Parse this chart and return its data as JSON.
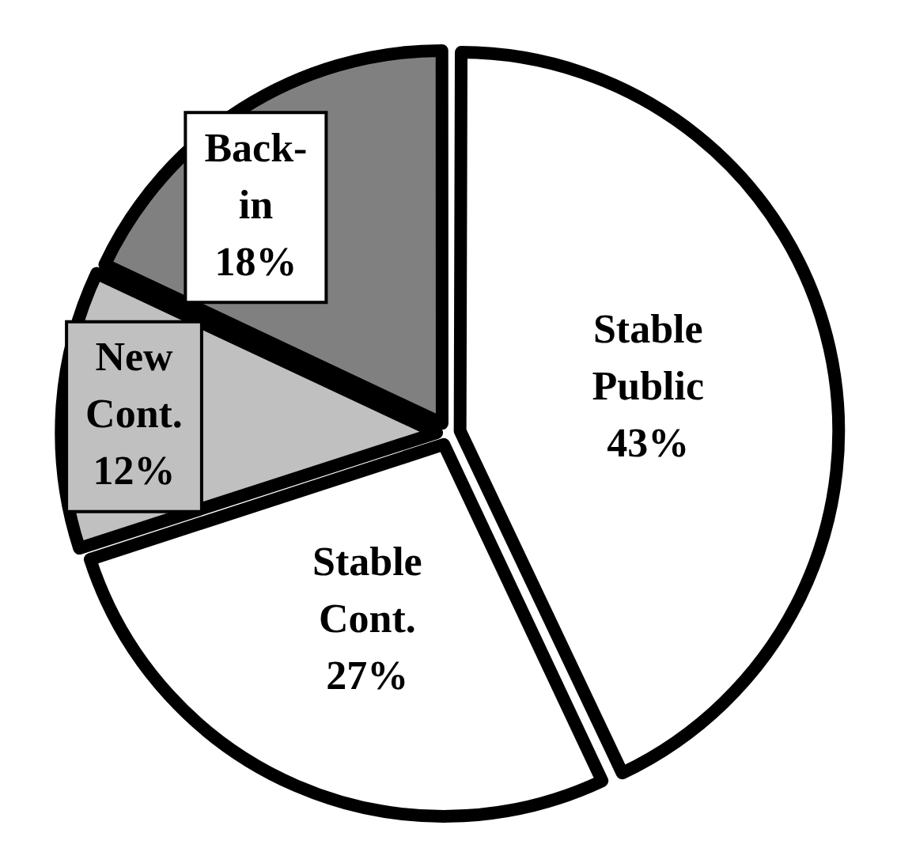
{
  "chart_data": {
    "type": "pie",
    "categories": [
      "Stable Public",
      "Stable Cont.",
      "New Cont.",
      "Back-in"
    ],
    "values": [
      43,
      27,
      12,
      18
    ],
    "value_labels": [
      "43%",
      "27%",
      "12%",
      "18%"
    ],
    "colors": [
      "#ffffff",
      "#ffffff",
      "#c0c0c0",
      "#808080"
    ],
    "legend": false
  }
}
